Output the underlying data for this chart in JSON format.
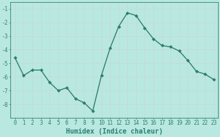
{
  "x": [
    0,
    1,
    2,
    3,
    4,
    5,
    6,
    7,
    8,
    9,
    10,
    11,
    12,
    13,
    14,
    15,
    16,
    17,
    18,
    19,
    20,
    21,
    22,
    23
  ],
  "y": [
    -4.6,
    -5.9,
    -5.5,
    -5.5,
    -6.4,
    -7.0,
    -6.8,
    -7.6,
    -7.9,
    -8.5,
    -5.9,
    -3.9,
    -2.3,
    -1.3,
    -1.5,
    -2.4,
    -3.2,
    -3.7,
    -3.8,
    -4.1,
    -4.8,
    -5.6,
    -5.8,
    -6.2
  ],
  "line_color": "#2e7d6e",
  "marker": "D",
  "markersize": 2.2,
  "linewidth": 1.0,
  "bg_color": "#b8e8e0",
  "grid_color": "#c8d8d4",
  "axis_color": "#2e7d6e",
  "xlabel": "Humidex (Indice chaleur)",
  "xlim": [
    -0.5,
    23.5
  ],
  "ylim": [
    -9.0,
    -0.5
  ],
  "yticks": [
    -8,
    -7,
    -6,
    -5,
    -4,
    -3,
    -2,
    -1
  ],
  "xticks": [
    0,
    1,
    2,
    3,
    4,
    5,
    6,
    7,
    8,
    9,
    10,
    11,
    12,
    13,
    14,
    15,
    16,
    17,
    18,
    19,
    20,
    21,
    22,
    23
  ],
  "tick_fontsize": 5.5,
  "xlabel_fontsize": 7.0
}
